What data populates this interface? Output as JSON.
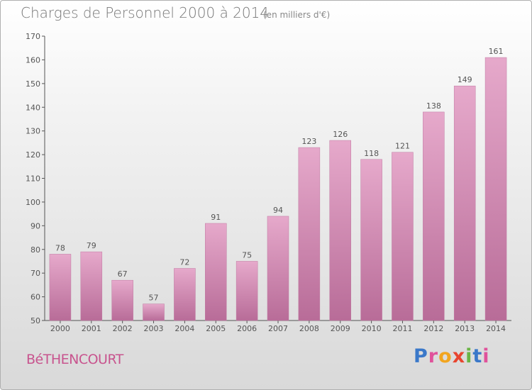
{
  "title": "Charges de Personnel 2000 à 2014",
  "subtitle": "(en milliers d'€)",
  "commune": "BéTHENCOURT",
  "logo": {
    "letters": [
      "P",
      "r",
      "o",
      "x",
      "i",
      "t",
      "i"
    ],
    "colors": [
      "#3a78c9",
      "#e0529b",
      "#f2a51f",
      "#e8452f",
      "#6ab545",
      "#3a78c9",
      "#e0529b"
    ]
  },
  "chart_data": {
    "type": "bar",
    "categories": [
      "2000",
      "2001",
      "2002",
      "2003",
      "2004",
      "2005",
      "2006",
      "2007",
      "2008",
      "2009",
      "2010",
      "2011",
      "2012",
      "2013",
      "2014"
    ],
    "values": [
      78,
      79,
      67,
      57,
      72,
      91,
      75,
      94,
      123,
      126,
      118,
      121,
      138,
      149,
      161
    ],
    "ylim": [
      50,
      170
    ],
    "yticks": [
      50,
      60,
      70,
      80,
      90,
      100,
      110,
      120,
      130,
      140,
      150,
      160,
      170
    ],
    "bar_color": "#d486b2",
    "grid": false
  }
}
